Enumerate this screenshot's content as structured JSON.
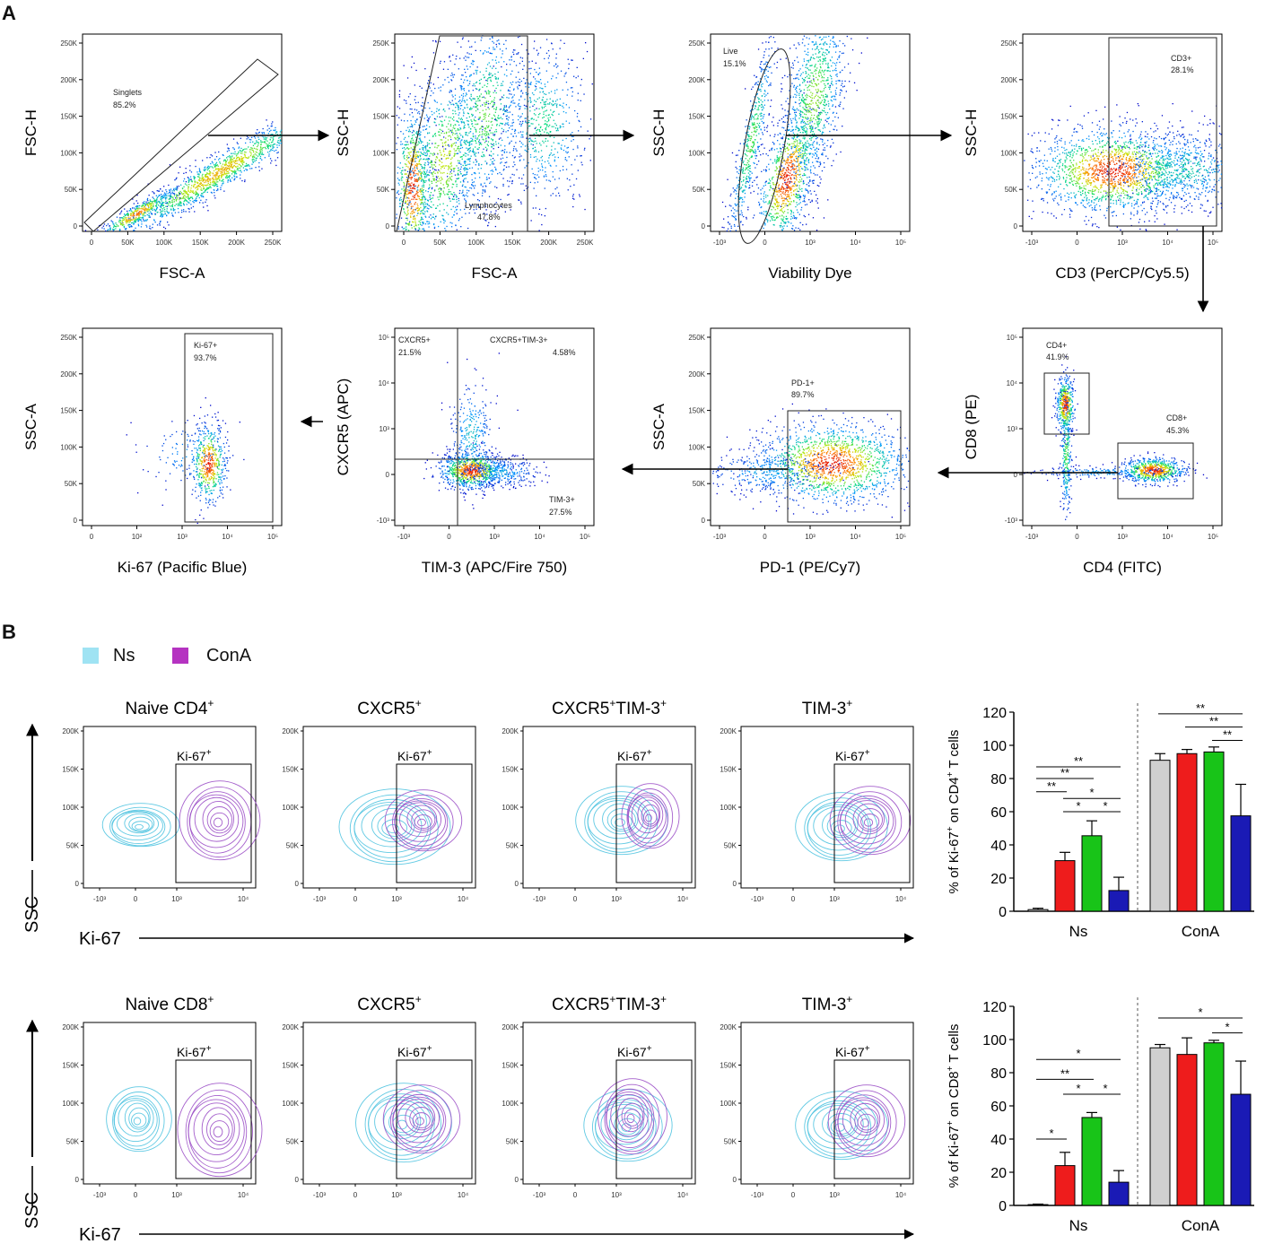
{
  "panel_labels": {
    "a": "A",
    "b": "B"
  },
  "colors": {
    "ns": "#9fe3f3",
    "cona": "#b533c1",
    "ns_contour": "#4fc3e0",
    "cona_contour": "#9b4fc6",
    "bar_grey": "#d0d0d0",
    "bar_red": "#ee1c1c",
    "bar_green": "#18c418",
    "bar_blue": "#1a1ab5"
  },
  "gating": [
    {
      "ylabel": "FSC-H",
      "xlabel": "FSC-A",
      "gate_label": "Singlets",
      "gate_pct": "85.2%",
      "yticks": [
        "0",
        "50K",
        "100K",
        "150K",
        "200K",
        "250K"
      ],
      "xticks": [
        "0",
        "50K",
        "100K",
        "150K",
        "200K",
        "250K"
      ]
    },
    {
      "ylabel": "SSC-H",
      "xlabel": "FSC-A",
      "gate_label": "Lymphocytes",
      "gate_pct": "47.8%",
      "yticks": [
        "0",
        "50K",
        "100K",
        "150K",
        "200K",
        "250K"
      ],
      "xticks": [
        "0",
        "50K",
        "100K",
        "150K",
        "200K",
        "250K"
      ]
    },
    {
      "ylabel": "SSC-H",
      "xlabel": "Viability Dye",
      "gate_label": "Live",
      "gate_pct": "15.1%",
      "yticks": [
        "0",
        "50K",
        "100K",
        "150K",
        "200K",
        "250K"
      ],
      "xticks": [
        "-10³",
        "0",
        "10³",
        "10⁴",
        "10⁵"
      ]
    },
    {
      "ylabel": "SSC-H",
      "xlabel": "CD3 (PerCP/Cy5.5)",
      "gate_label": "CD3+",
      "gate_pct": "28.1%",
      "yticks": [
        "0",
        "50K",
        "100K",
        "150K",
        "200K",
        "250K"
      ],
      "xticks": [
        "-10³",
        "0",
        "10³",
        "10⁴",
        "10⁵"
      ]
    },
    {
      "ylabel": "CD8 (PE)",
      "xlabel": "CD4 (FITC)",
      "gate_label": "CD4+",
      "gate_pct": "41.9%",
      "gate2_label": "CD8+",
      "gate2_pct": "45.3%",
      "yticks": [
        "-10³",
        "0",
        "10³",
        "10⁴",
        "10⁵"
      ],
      "xticks": [
        "-10³",
        "0",
        "10³",
        "10⁴",
        "10⁵"
      ]
    },
    {
      "ylabel": "SSC-A",
      "xlabel": "PD-1 (PE/Cy7)",
      "gate_label": "PD-1+",
      "gate_pct": "89.7%",
      "yticks": [
        "0",
        "50K",
        "100K",
        "150K",
        "200K",
        "250K"
      ],
      "xticks": [
        "-10³",
        "0",
        "10³",
        "10⁴",
        "10⁵"
      ]
    },
    {
      "ylabel": "CXCR5 (APC)",
      "xlabel": "TIM-3  (APC/Fire 750)",
      "q1_label": "CXCR5+",
      "q1_pct": "21.5%",
      "q2_label": "CXCR5+TIM-3+",
      "q2_pct": "4.58%",
      "q3_label": "TIM-3+",
      "q3_pct": "27.5%",
      "yticks": [
        "-10³",
        "0",
        "10³",
        "10⁴",
        "10⁵"
      ],
      "xticks": [
        "-10³",
        "0",
        "10³",
        "10⁴",
        "10⁵"
      ]
    },
    {
      "ylabel": "SSC-A",
      "xlabel": "Ki-67 (Pacific Blue)",
      "gate_label": "Ki-67+",
      "gate_pct": "93.7%",
      "yticks": [
        "0",
        "50K",
        "100K",
        "150K",
        "200K",
        "250K"
      ],
      "xticks": [
        "0",
        "10²",
        "10³",
        "10⁴",
        "10⁵"
      ]
    }
  ],
  "legend": {
    "ns": "Ns",
    "cona": "ConA"
  },
  "contour_rows": [
    {
      "titles": [
        {
          "base": "Naive CD4",
          "sup": "+"
        },
        {
          "base": "CXCR5",
          "sup": "+"
        },
        {
          "base": "CXCR5",
          "sup": "+",
          "base2": "TIM-3",
          "sup2": "+"
        },
        {
          "base": "TIM-3",
          "sup": "+"
        }
      ],
      "yaxis": "SSC",
      "xaxis": "Ki-67"
    },
    {
      "titles": [
        {
          "base": "Naive CD8",
          "sup": "+"
        },
        {
          "base": "CXCR5",
          "sup": "+"
        },
        {
          "base": "CXCR5",
          "sup": "+",
          "base2": "TIM-3",
          "sup2": "+"
        },
        {
          "base": "TIM-3",
          "sup": "+"
        }
      ],
      "yaxis": "SSC",
      "xaxis": "Ki-67"
    }
  ],
  "contour_gate": {
    "base": "Ki-67",
    "sup": "+"
  },
  "contour_yticks": [
    "0",
    "50K",
    "100K",
    "150K",
    "200K"
  ],
  "contour_xticks": [
    "-10³",
    "0",
    "10³",
    "10⁴"
  ],
  "chart_data": [
    {
      "type": "bar",
      "ylabel_parts": {
        "pre": "% of Ki-67",
        "sup": "+",
        "mid": " on CD4",
        "sup2": "+",
        "post": " T cells"
      },
      "ylim": [
        0,
        120
      ],
      "yticks": [
        "0",
        "20",
        "40",
        "60",
        "80",
        "100",
        "120"
      ],
      "groups": [
        "Ns",
        "ConA"
      ],
      "series": [
        {
          "name": "Naive",
          "values": [
            1,
            91
          ],
          "errors": [
            0.8,
            4
          ]
        },
        {
          "name": "CXCR5+",
          "values": [
            30.5,
            95
          ],
          "errors": [
            5,
            2.5
          ]
        },
        {
          "name": "CXCR5+TIM-3+",
          "values": [
            45.5,
            96
          ],
          "errors": [
            9,
            3
          ]
        },
        {
          "name": "TIM-3+",
          "values": [
            12.5,
            57.5
          ],
          "errors": [
            8,
            19
          ]
        }
      ],
      "annotations": [
        {
          "group": 0,
          "from": 0,
          "to": 3,
          "level": 87,
          "label": "**"
        },
        {
          "group": 0,
          "from": 0,
          "to": 2,
          "level": 80,
          "label": "**"
        },
        {
          "group": 0,
          "from": 0,
          "to": 1,
          "level": 72,
          "label": "**"
        },
        {
          "group": 0,
          "from": 1,
          "to": 3,
          "level": 68,
          "label": "*"
        },
        {
          "group": 0,
          "from": 1,
          "to": 2,
          "level": 60,
          "label": "*"
        },
        {
          "group": 0,
          "from": 2,
          "to": 3,
          "level": 60,
          "label": "*"
        },
        {
          "group": 1,
          "from": 0,
          "to": 3,
          "level": 119,
          "label": "**"
        },
        {
          "group": 1,
          "from": 1,
          "to": 3,
          "level": 111,
          "label": "**"
        },
        {
          "group": 1,
          "from": 2,
          "to": 3,
          "level": 103,
          "label": "**"
        }
      ]
    },
    {
      "type": "bar",
      "ylabel_parts": {
        "pre": "% of Ki-67",
        "sup": "+",
        "mid": " on CD8",
        "sup2": "+",
        "post": " T cells"
      },
      "ylim": [
        0,
        120
      ],
      "yticks": [
        "0",
        "20",
        "40",
        "60",
        "80",
        "100",
        "120"
      ],
      "groups": [
        "Ns",
        "ConA"
      ],
      "series": [
        {
          "name": "Naive",
          "values": [
            0.5,
            95
          ],
          "errors": [
            0.3,
            2
          ]
        },
        {
          "name": "CXCR5+",
          "values": [
            24,
            91
          ],
          "errors": [
            8,
            10
          ]
        },
        {
          "name": "CXCR5+TIM-3+",
          "values": [
            53,
            98
          ],
          "errors": [
            3,
            1.5
          ]
        },
        {
          "name": "TIM-3+",
          "values": [
            14,
            67
          ],
          "errors": [
            7,
            20
          ]
        }
      ],
      "annotations": [
        {
          "group": 0,
          "from": 0,
          "to": 3,
          "level": 88,
          "label": "*"
        },
        {
          "group": 0,
          "from": 0,
          "to": 2,
          "level": 76,
          "label": "**"
        },
        {
          "group": 0,
          "from": 1,
          "to": 2,
          "level": 67,
          "label": "*"
        },
        {
          "group": 0,
          "from": 2,
          "to": 3,
          "level": 67,
          "label": "*"
        },
        {
          "group": 0,
          "from": 0,
          "to": 1,
          "level": 40,
          "label": "*"
        },
        {
          "group": 1,
          "from": 0,
          "to": 3,
          "level": 113,
          "label": "*"
        },
        {
          "group": 1,
          "from": 2,
          "to": 3,
          "level": 104,
          "label": "*"
        }
      ]
    }
  ]
}
